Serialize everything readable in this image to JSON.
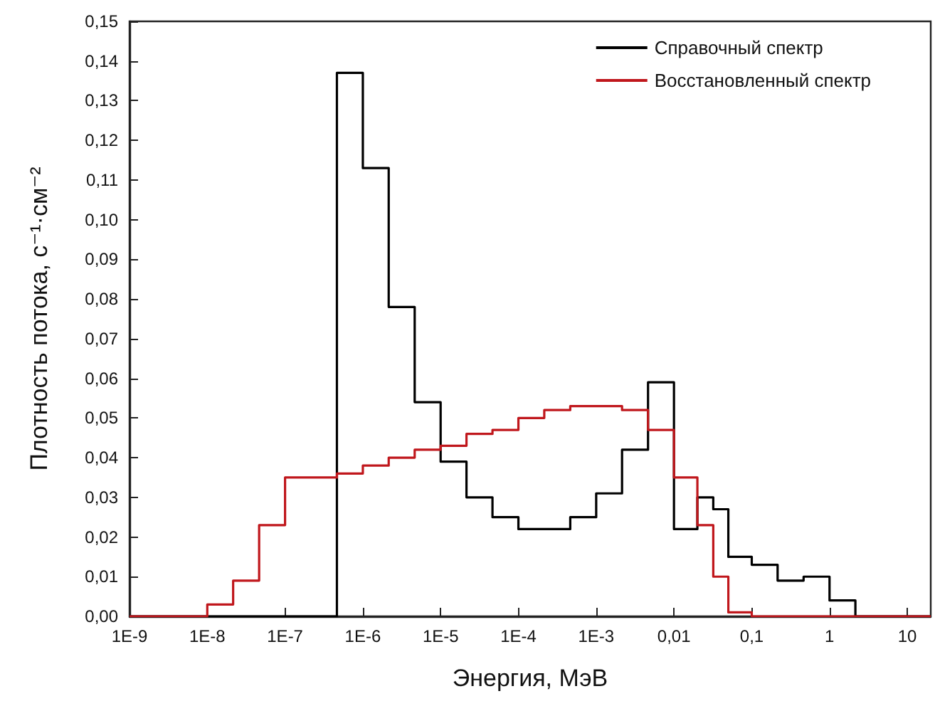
{
  "chart_data": {
    "type": "step",
    "xlabel": "Энергия, МэВ",
    "ylabel": "Плотность потока, с⁻¹·см⁻²",
    "log": "x",
    "grid": false,
    "legend": "top right",
    "marker": "none",
    "line_style": "solid",
    "xlim": [
      1e-09,
      20
    ],
    "xticks": [
      {
        "value": 1e-09,
        "label": "1E-9"
      },
      {
        "value": 1e-08,
        "label": "1E-8"
      },
      {
        "value": 1e-07,
        "label": "1E-7"
      },
      {
        "value": 1e-06,
        "label": "1E-6"
      },
      {
        "value": 1e-05,
        "label": "1E-5"
      },
      {
        "value": 0.0001,
        "label": "1E-4"
      },
      {
        "value": 0.001,
        "label": "1E-3"
      },
      {
        "value": 0.01,
        "label": "0,01"
      },
      {
        "value": 0.1,
        "label": "0,1"
      },
      1,
      10
    ],
    "ylim": [
      0,
      0.15
    ],
    "yticks": [
      {
        "value": 0,
        "label": "0,00"
      },
      {
        "value": 0.01,
        "label": "0,01"
      },
      {
        "value": 0.02,
        "label": "0,02"
      },
      {
        "value": 0.03,
        "label": "0,03"
      },
      {
        "value": 0.04,
        "label": "0,04"
      },
      {
        "value": 0.05,
        "label": "0,05"
      },
      {
        "value": 0.06,
        "label": "0,06"
      },
      {
        "value": 0.07,
        "label": "0,07"
      },
      {
        "value": 0.08,
        "label": "0,08"
      },
      {
        "value": 0.09,
        "label": "0,09"
      },
      {
        "value": 0.1,
        "label": "0,10"
      },
      {
        "value": 0.11,
        "label": "0,11"
      },
      {
        "value": 0.12,
        "label": "0,12"
      },
      {
        "value": 0.13,
        "label": "0,13"
      },
      {
        "value": 0.14,
        "label": "0,14"
      },
      {
        "value": 0.15,
        "label": "0,15"
      }
    ],
    "series": [
      {
        "name": "Справочный спектр",
        "color": "#000000",
        "x": [
          1e-09,
          4.64e-07,
          1e-06,
          2.15e-06,
          4.64e-06,
          1e-05,
          2.15e-05,
          4.64e-05,
          0.0001,
          0.000215,
          0.000464,
          0.001,
          0.00215,
          0.00464,
          0.01,
          0.02,
          0.032,
          0.05,
          0.1,
          0.215,
          0.464,
          1,
          2.15,
          20
        ],
        "values": [
          0,
          0.137,
          0.113,
          0.078,
          0.054,
          0.039,
          0.03,
          0.025,
          0.022,
          0.022,
          0.025,
          0.031,
          0.042,
          0.059,
          0.022,
          0.03,
          0.027,
          0.015,
          0.013,
          0.009,
          0.01,
          0.004,
          0,
          0
        ]
      },
      {
        "name": "Восстановленный спектр",
        "color": "#c0171c",
        "x": [
          1e-09,
          1e-08,
          2.15e-08,
          4.64e-08,
          1e-07,
          2.15e-07,
          4.64e-07,
          1e-06,
          2.15e-06,
          4.64e-06,
          1e-05,
          2.15e-05,
          4.64e-05,
          0.0001,
          0.000215,
          0.000464,
          0.001,
          0.00215,
          0.00464,
          0.01,
          0.02,
          0.032,
          0.05,
          0.1,
          20
        ],
        "values": [
          0,
          0.003,
          0.009,
          0.023,
          0.035,
          0.035,
          0.036,
          0.038,
          0.04,
          0.042,
          0.043,
          0.046,
          0.047,
          0.05,
          0.052,
          0.053,
          0.053,
          0.052,
          0.047,
          0.035,
          0.023,
          0.01,
          0.001,
          0,
          0
        ]
      }
    ]
  }
}
